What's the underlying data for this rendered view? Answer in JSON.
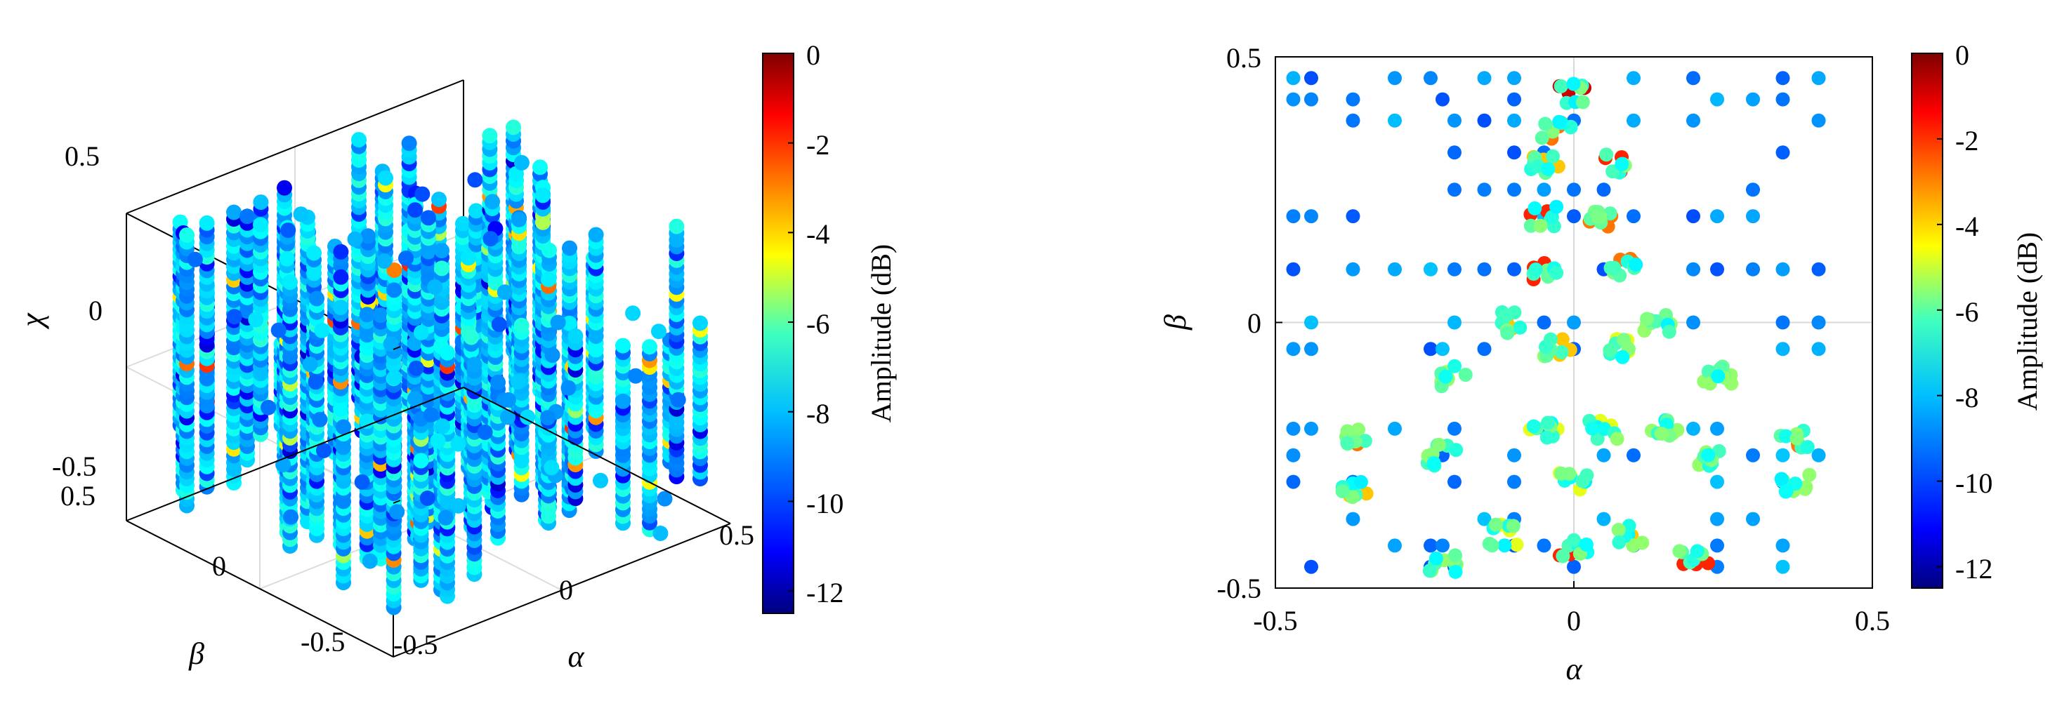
{
  "chart_data": [
    {
      "type": "scatter3d",
      "title": "",
      "xlabel": "α",
      "ylabel": "β",
      "zlabel": "χ",
      "xlim": [
        -0.5,
        0.5
      ],
      "ylim": [
        -0.5,
        0.5
      ],
      "zlim": [
        -0.5,
        0.5
      ],
      "xticks": [
        "-0.5",
        "0",
        "0.5"
      ],
      "yticks": [
        "-0.5",
        "0",
        "0.5"
      ],
      "zticks": [
        "-0.5",
        "0",
        "0.5"
      ],
      "grid": true,
      "colormap": "jet",
      "colorbar": {
        "label": "Amplitude (dB)",
        "range": [
          -12.5,
          0
        ],
        "ticks": [
          "0",
          "-2",
          "-4",
          "-6",
          "-8",
          "-10",
          "-12"
        ]
      },
      "columns": [
        {
          "x": -0.4,
          "y": 0.4,
          "z": [
            -0.45,
            0.45
          ]
        },
        {
          "x": -0.3,
          "y": 0.3,
          "z": [
            -0.3,
            0.5
          ]
        },
        {
          "x": -0.2,
          "y": 0.2,
          "z": [
            -0.5,
            0.5
          ]
        },
        {
          "x": -0.1,
          "y": 0.1,
          "z": [
            -0.45,
            0.45
          ]
        },
        {
          "x": 0.0,
          "y": 0.0,
          "z": [
            -0.5,
            0.5
          ]
        },
        {
          "x": 0.1,
          "y": -0.1,
          "z": [
            -0.4,
            0.45
          ]
        },
        {
          "x": 0.2,
          "y": -0.2,
          "z": [
            -0.45,
            0.4
          ]
        },
        {
          "x": -0.3,
          "y": -0.2,
          "z": [
            -0.4,
            0.4
          ]
        },
        {
          "x": 0.3,
          "y": 0.2,
          "z": [
            -0.3,
            0.3
          ]
        },
        {
          "x": -0.2,
          "y": -0.3,
          "z": [
            -0.5,
            0.3
          ]
        },
        {
          "x": 0.2,
          "y": 0.3,
          "z": [
            -0.2,
            0.35
          ]
        },
        {
          "x": 0.4,
          "y": -0.4,
          "z": [
            -0.3,
            0.1
          ]
        }
      ]
    },
    {
      "type": "scatter",
      "title": "",
      "xlabel": "α",
      "ylabel": "β",
      "xlim": [
        -0.5,
        0.5
      ],
      "ylim": [
        -0.5,
        0.5
      ],
      "xticks": [
        "-0.5",
        "0",
        "0.5"
      ],
      "yticks": [
        "-0.5",
        "0",
        "0.5"
      ],
      "grid": true,
      "colormap": "jet",
      "colorbar": {
        "label": "Amplitude (dB)",
        "range": [
          -12.5,
          0
        ],
        "ticks": [
          "0",
          "-2",
          "-4",
          "-6",
          "-8",
          "-10",
          "-12"
        ]
      },
      "grid_alpha": [
        -0.47,
        -0.44,
        -0.37,
        -0.3,
        -0.24,
        -0.22,
        -0.2,
        -0.15,
        -0.1,
        -0.05,
        0.0,
        0.05,
        0.1,
        0.2,
        0.24,
        0.3,
        0.35,
        0.41
      ],
      "grid_beta": [
        0.46,
        0.42,
        0.38,
        0.32,
        0.25,
        0.2,
        0.1,
        0.0,
        -0.05,
        -0.2,
        -0.25,
        -0.3,
        -0.37,
        -0.42,
        -0.46
      ],
      "clusters": [
        {
          "alpha": 0.0,
          "beta": 0.43,
          "amp": -1
        },
        {
          "alpha": -0.03,
          "beta": 0.36,
          "amp": -3
        },
        {
          "alpha": 0.07,
          "beta": 0.3,
          "amp": -2
        },
        {
          "alpha": -0.05,
          "beta": 0.3,
          "amp": -4
        },
        {
          "alpha": -0.05,
          "beta": 0.2,
          "amp": -2
        },
        {
          "alpha": 0.05,
          "beta": 0.2,
          "amp": -3
        },
        {
          "alpha": -0.05,
          "beta": 0.1,
          "amp": -2
        },
        {
          "alpha": 0.08,
          "beta": 0.1,
          "amp": -3
        },
        {
          "alpha": -0.03,
          "beta": -0.05,
          "amp": -4
        },
        {
          "alpha": 0.07,
          "beta": -0.05,
          "amp": -5
        },
        {
          "alpha": 0.14,
          "beta": 0.0,
          "amp": -6
        },
        {
          "alpha": -0.1,
          "beta": 0.0,
          "amp": -4
        },
        {
          "alpha": -0.2,
          "beta": -0.1,
          "amp": -6
        },
        {
          "alpha": -0.05,
          "beta": -0.2,
          "amp": -5
        },
        {
          "alpha": 0.05,
          "beta": -0.2,
          "amp": -5
        },
        {
          "alpha": 0.15,
          "beta": -0.2,
          "amp": -6
        },
        {
          "alpha": -0.37,
          "beta": -0.22,
          "amp": -3
        },
        {
          "alpha": -0.37,
          "beta": -0.32,
          "amp": -4
        },
        {
          "alpha": 0.37,
          "beta": -0.22,
          "amp": -3
        },
        {
          "alpha": 0.37,
          "beta": -0.3,
          "amp": -6
        },
        {
          "alpha": 0.0,
          "beta": -0.3,
          "amp": -5
        },
        {
          "alpha": 0.0,
          "beta": -0.42,
          "amp": -2
        },
        {
          "alpha": -0.12,
          "beta": -0.4,
          "amp": -5
        },
        {
          "alpha": 0.1,
          "beta": -0.4,
          "amp": -4
        },
        {
          "alpha": 0.2,
          "beta": -0.45,
          "amp": -2
        },
        {
          "alpha": -0.22,
          "beta": -0.45,
          "amp": -6
        },
        {
          "alpha": 0.22,
          "beta": -0.25,
          "amp": -6
        },
        {
          "alpha": -0.22,
          "beta": -0.25,
          "amp": -7
        },
        {
          "alpha": 0.24,
          "beta": -0.1,
          "amp": -6
        }
      ]
    }
  ]
}
